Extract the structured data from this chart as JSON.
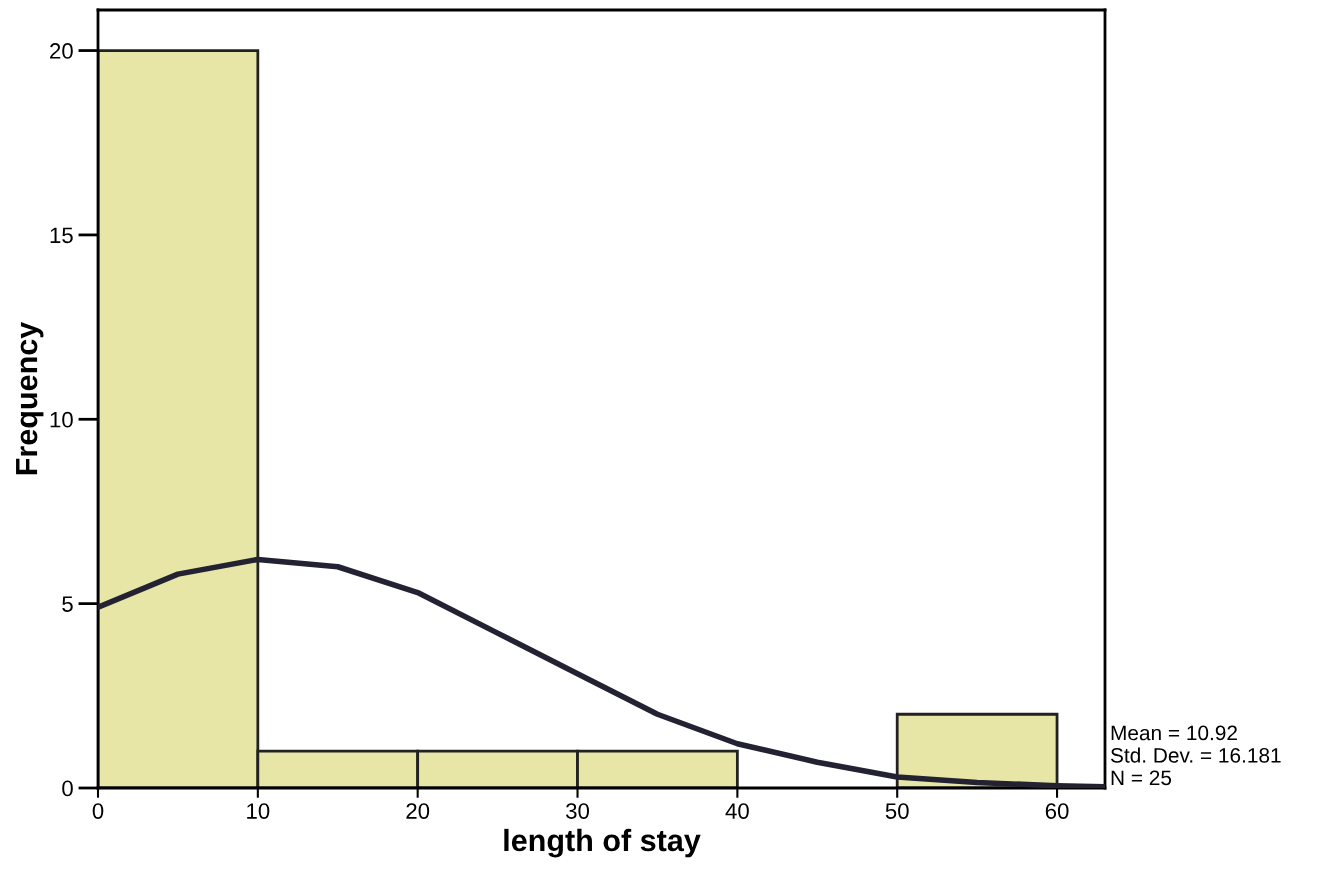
{
  "chart_data": {
    "type": "histogram",
    "xlabel": "length of stay",
    "ylabel": "Frequency",
    "bins": [
      0,
      10,
      20,
      30,
      40,
      50,
      60
    ],
    "values": [
      20,
      1,
      1,
      1,
      0,
      2
    ],
    "color": "#e8e6a6",
    "series": [
      {
        "type": "line",
        "color": "#222233",
        "x": [
          0,
          5,
          10,
          15,
          20,
          25,
          30,
          35,
          40,
          45,
          50,
          55,
          60,
          63
        ],
        "values": [
          4.9,
          5.8,
          6.2,
          6.0,
          5.3,
          4.2,
          3.1,
          2.0,
          1.2,
          0.7,
          0.3,
          0.15,
          0.06,
          0.03
        ]
      }
    ],
    "xlim": [
      0,
      63
    ],
    "ylim": [
      0,
      21.1
    ],
    "xticks": [
      0,
      10,
      20,
      30,
      40,
      50,
      60
    ],
    "yticks": [
      0,
      5,
      10,
      15,
      20
    ],
    "grid": false,
    "annotations": [
      "Mean = 10.92",
      "Std. Dev. = 16.181",
      "N = 25"
    ]
  }
}
